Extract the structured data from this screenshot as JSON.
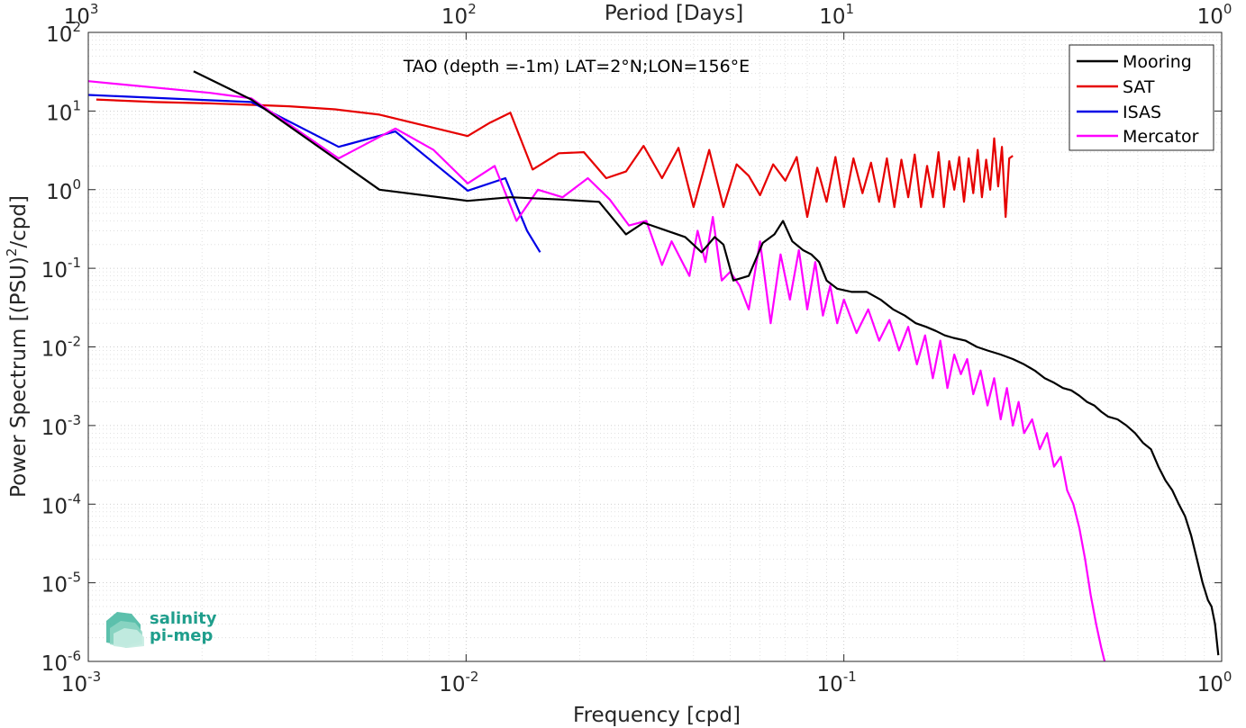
{
  "chart_data": {
    "type": "line",
    "title": "TAO (depth =-1m) LAT=2°N;LON=156°E",
    "xlabel": "Frequency [cpd]",
    "ylabel": "Power Spectrum [(PSU)²/cpd]",
    "ylabel_parts": {
      "pre": "Power Spectrum [(PSU)",
      "sup": "2",
      "post": "/cpd]"
    },
    "top_xlabel": "Period [Days]",
    "xscale": "log",
    "yscale": "log",
    "xlim": [
      0.001,
      1
    ],
    "ylim": [
      1e-06,
      100
    ],
    "x_ticks": [
      {
        "base": "10",
        "exp": "-3"
      },
      {
        "base": "10",
        "exp": "-2"
      },
      {
        "base": "10",
        "exp": "-1"
      },
      {
        "base": "10",
        "exp": "0"
      }
    ],
    "y_ticks": [
      {
        "base": "10",
        "exp": "2"
      },
      {
        "base": "10",
        "exp": "1"
      },
      {
        "base": "10",
        "exp": "0"
      },
      {
        "base": "10",
        "exp": "-1"
      },
      {
        "base": "10",
        "exp": "-2"
      },
      {
        "base": "10",
        "exp": "-3"
      },
      {
        "base": "10",
        "exp": "-4"
      },
      {
        "base": "10",
        "exp": "-5"
      },
      {
        "base": "10",
        "exp": "-6"
      }
    ],
    "top_ticks": [
      {
        "base": "10",
        "exp": "3"
      },
      {
        "base": "10",
        "exp": "2"
      },
      {
        "base": "10",
        "exp": "1"
      },
      {
        "base": "10",
        "exp": "0"
      }
    ],
    "grid": true,
    "legend_position": "top-right",
    "series": [
      {
        "name": "Mooring",
        "color": "#000000",
        "x": [
          0.0019,
          0.0027,
          0.0059,
          0.0101,
          0.0131,
          0.0177,
          0.0225,
          0.0265,
          0.0295,
          0.034,
          0.038,
          0.042,
          0.0455,
          0.048,
          0.051,
          0.056,
          0.061,
          0.0655,
          0.069,
          0.073,
          0.078,
          0.082,
          0.086,
          0.09,
          0.096,
          0.105,
          0.115,
          0.125,
          0.135,
          0.145,
          0.155,
          0.165,
          0.175,
          0.185,
          0.195,
          0.21,
          0.225,
          0.24,
          0.26,
          0.28,
          0.3,
          0.32,
          0.34,
          0.36,
          0.38,
          0.4,
          0.42,
          0.44,
          0.46,
          0.48,
          0.5,
          0.53,
          0.56,
          0.59,
          0.62,
          0.65,
          0.68,
          0.71,
          0.74,
          0.77,
          0.8,
          0.83,
          0.86,
          0.89,
          0.92,
          0.94,
          0.96,
          0.98
        ],
        "y": [
          32,
          14,
          1.0,
          0.72,
          0.8,
          0.75,
          0.7,
          0.27,
          0.38,
          0.3,
          0.25,
          0.16,
          0.25,
          0.2,
          0.07,
          0.08,
          0.21,
          0.27,
          0.4,
          0.22,
          0.17,
          0.15,
          0.12,
          0.07,
          0.055,
          0.05,
          0.05,
          0.04,
          0.03,
          0.025,
          0.02,
          0.018,
          0.016,
          0.014,
          0.013,
          0.012,
          0.01,
          0.009,
          0.008,
          0.007,
          0.006,
          0.005,
          0.004,
          0.0035,
          0.003,
          0.0028,
          0.0024,
          0.002,
          0.0018,
          0.0015,
          0.0013,
          0.0012,
          0.001,
          0.0008,
          0.0006,
          0.0005,
          0.0003,
          0.0002,
          0.00015,
          0.0001,
          7e-05,
          4e-05,
          2e-05,
          1e-05,
          6e-06,
          5e-06,
          3e-06,
          1.2e-06
        ]
      },
      {
        "name": "SAT",
        "color": "#e60000",
        "x": [
          0.00105,
          0.0015,
          0.0021,
          0.0027,
          0.0034,
          0.0045,
          0.0059,
          0.0101,
          0.0115,
          0.0131,
          0.015,
          0.0176,
          0.0205,
          0.0235,
          0.0265,
          0.0295,
          0.033,
          0.0365,
          0.04,
          0.044,
          0.048,
          0.052,
          0.056,
          0.06,
          0.065,
          0.07,
          0.075,
          0.08,
          0.085,
          0.09,
          0.095,
          0.1,
          0.106,
          0.112,
          0.118,
          0.124,
          0.13,
          0.136,
          0.142,
          0.148,
          0.154,
          0.16,
          0.166,
          0.172,
          0.178,
          0.184,
          0.19,
          0.196,
          0.202,
          0.208,
          0.214,
          0.22,
          0.226,
          0.232,
          0.238,
          0.244,
          0.25,
          0.256,
          0.262,
          0.268,
          0.274,
          0.28
        ],
        "y": [
          14,
          13,
          12.5,
          12,
          11.5,
          10.5,
          9,
          4.8,
          7,
          9.5,
          1.8,
          2.9,
          3,
          1.4,
          1.7,
          3.6,
          1.4,
          3.4,
          0.6,
          3.2,
          0.6,
          2.1,
          1.5,
          0.85,
          2.1,
          1.3,
          2.6,
          0.45,
          1.9,
          0.7,
          2.6,
          0.6,
          2.5,
          0.9,
          2.2,
          0.7,
          2.5,
          0.6,
          2.4,
          0.8,
          2.8,
          0.6,
          2.0,
          0.8,
          3.0,
          0.6,
          2.3,
          1.0,
          2.6,
          0.7,
          2.5,
          0.9,
          3.2,
          0.8,
          2.4,
          1.0,
          4.5,
          1.1,
          3.5,
          0.45,
          2.5,
          2.7
        ]
      },
      {
        "name": "ISAS",
        "color": "#0000e6",
        "x": [
          0.001,
          0.0027,
          0.0046,
          0.0065,
          0.0101,
          0.0127,
          0.0145,
          0.0157
        ],
        "y": [
          16,
          13,
          3.5,
          5.5,
          0.97,
          1.4,
          0.3,
          0.16
        ]
      },
      {
        "name": "Mercator",
        "color": "#ff00ff",
        "x": [
          0.001,
          0.0021,
          0.0027,
          0.0046,
          0.0065,
          0.0082,
          0.0101,
          0.0119,
          0.0136,
          0.0155,
          0.018,
          0.021,
          0.024,
          0.027,
          0.03,
          0.033,
          0.035,
          0.039,
          0.041,
          0.043,
          0.045,
          0.0475,
          0.05,
          0.053,
          0.056,
          0.06,
          0.064,
          0.068,
          0.072,
          0.076,
          0.08,
          0.084,
          0.088,
          0.092,
          0.096,
          0.1,
          0.108,
          0.116,
          0.124,
          0.132,
          0.14,
          0.148,
          0.156,
          0.164,
          0.172,
          0.18,
          0.188,
          0.196,
          0.204,
          0.212,
          0.22,
          0.23,
          0.24,
          0.25,
          0.26,
          0.27,
          0.28,
          0.29,
          0.3,
          0.315,
          0.33,
          0.345,
          0.36,
          0.375,
          0.39,
          0.405,
          0.42,
          0.435,
          0.45,
          0.465,
          0.48,
          0.49
        ],
        "y": [
          24,
          17,
          14.5,
          2.5,
          6,
          3.2,
          1.2,
          2.0,
          0.4,
          1.0,
          0.8,
          1.4,
          0.75,
          0.35,
          0.4,
          0.11,
          0.22,
          0.08,
          0.3,
          0.12,
          0.45,
          0.07,
          0.09,
          0.06,
          0.03,
          0.22,
          0.02,
          0.15,
          0.04,
          0.17,
          0.03,
          0.12,
          0.025,
          0.06,
          0.02,
          0.04,
          0.015,
          0.03,
          0.012,
          0.022,
          0.009,
          0.018,
          0.006,
          0.014,
          0.004,
          0.012,
          0.003,
          0.008,
          0.0045,
          0.007,
          0.0025,
          0.005,
          0.0018,
          0.004,
          0.0012,
          0.003,
          0.001,
          0.002,
          0.0008,
          0.0012,
          0.0005,
          0.0008,
          0.0003,
          0.0004,
          0.00015,
          0.0001,
          5e-05,
          2e-05,
          7e-06,
          3e-06,
          1.5e-06,
          1e-06
        ]
      }
    ]
  },
  "logo": {
    "line1": "salinity",
    "line2": "pi-mep"
  }
}
